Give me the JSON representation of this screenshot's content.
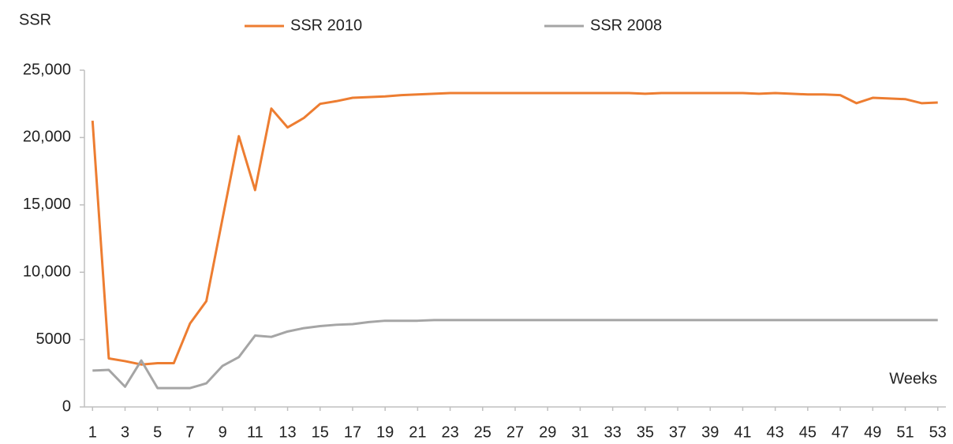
{
  "chart_data": {
    "type": "line",
    "y_label": "SSR",
    "x_label": "Weeks",
    "x": [
      1,
      2,
      3,
      4,
      5,
      6,
      7,
      8,
      9,
      10,
      11,
      12,
      13,
      14,
      15,
      16,
      17,
      18,
      19,
      20,
      21,
      22,
      23,
      24,
      25,
      26,
      27,
      28,
      29,
      30,
      31,
      32,
      33,
      34,
      35,
      36,
      37,
      38,
      39,
      40,
      41,
      42,
      43,
      44,
      45,
      46,
      47,
      48,
      49,
      50,
      51,
      52,
      53
    ],
    "xlim": [
      0.5,
      53.5
    ],
    "xticks": [
      1,
      3,
      5,
      7,
      9,
      11,
      13,
      15,
      17,
      19,
      21,
      23,
      25,
      27,
      29,
      31,
      33,
      35,
      37,
      39,
      41,
      43,
      45,
      47,
      49,
      51,
      53
    ],
    "ylim": [
      0,
      25000
    ],
    "yticks": [
      0,
      5000,
      {
        "value": 10000,
        "label": "10,000"
      },
      {
        "value": 15000,
        "label": "15,000"
      },
      {
        "value": 20000,
        "label": "20,000"
      },
      {
        "value": 25000,
        "label": "25,000"
      }
    ],
    "grid": false,
    "series": [
      {
        "name": "SSR 2010",
        "color": "#ed7d31",
        "values": [
          21250,
          3600,
          3400,
          3150,
          3250,
          3250,
          6200,
          7850,
          14000,
          20100,
          16100,
          22150,
          20750,
          21450,
          22500,
          22700,
          22950,
          23000,
          23050,
          23150,
          23200,
          23250,
          23300,
          23300,
          23300,
          23300,
          23300,
          23300,
          23300,
          23300,
          23300,
          23300,
          23300,
          23300,
          23250,
          23300,
          23300,
          23300,
          23300,
          23300,
          23300,
          23250,
          23300,
          23250,
          23200,
          23200,
          23150,
          22550,
          22950,
          22900,
          22850,
          22550,
          22600
        ]
      },
      {
        "name": "SSR 2008",
        "color": "#a5a5a5",
        "values": [
          2700,
          2750,
          1500,
          3450,
          1400,
          1400,
          1400,
          1750,
          3050,
          3700,
          5300,
          5200,
          5600,
          5850,
          6000,
          6100,
          6150,
          6300,
          6400,
          6400,
          6400,
          6450,
          6450,
          6450,
          6450,
          6450,
          6450,
          6450,
          6450,
          6450,
          6450,
          6450,
          6450,
          6450,
          6450,
          6450,
          6450,
          6450,
          6450,
          6450,
          6450,
          6450,
          6450,
          6450,
          6450,
          6450,
          6450,
          6450,
          6450,
          6450,
          6450,
          6450,
          6450
        ]
      }
    ]
  }
}
